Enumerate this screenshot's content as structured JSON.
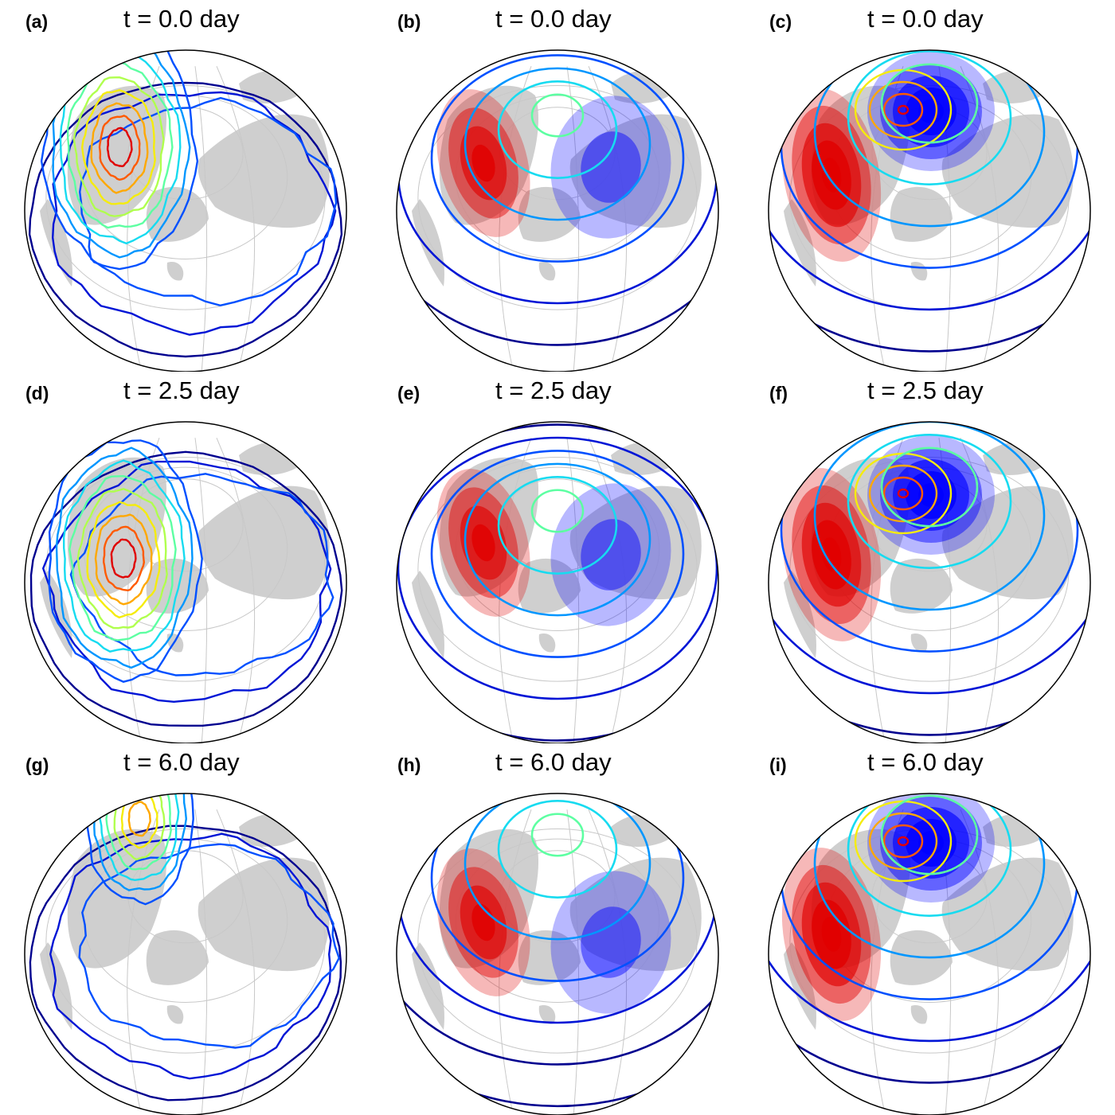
{
  "colors": {
    "land": "#cfcfcf",
    "ocean": "#ffffff",
    "outline": "#000000",
    "graticule": "#c8c8c8",
    "positive_anomaly": "#e00000",
    "negative_anomaly": "#0000ff",
    "contour_palette": [
      "#00008f",
      "#0015d6",
      "#0050ff",
      "#0096ff",
      "#17dbf0",
      "#5dffa2",
      "#b0ff4e",
      "#f5ec0b",
      "#ffa800",
      "#ff5a00",
      "#e00000"
    ]
  },
  "panels": [
    {
      "letter": "(a)",
      "title": "t = 0.0 day",
      "type": "observed"
    },
    {
      "letter": "(b)",
      "title": "t = 0.0 day",
      "type": "model_weak"
    },
    {
      "letter": "(c)",
      "title": "t = 0.0 day",
      "type": "model_strong"
    },
    {
      "letter": "(d)",
      "title": "t = 2.5 day",
      "type": "observed"
    },
    {
      "letter": "(e)",
      "title": "t = 2.5 day",
      "type": "model_weak"
    },
    {
      "letter": "(f)",
      "title": "t = 2.5 day",
      "type": "model_strong"
    },
    {
      "letter": "(g)",
      "title": "t = 6.0 day",
      "type": "observed"
    },
    {
      "letter": "(h)",
      "title": "t = 6.0 day",
      "type": "model_weak"
    },
    {
      "letter": "(i)",
      "title": "t = 6.0 day",
      "type": "model_strong"
    }
  ]
}
